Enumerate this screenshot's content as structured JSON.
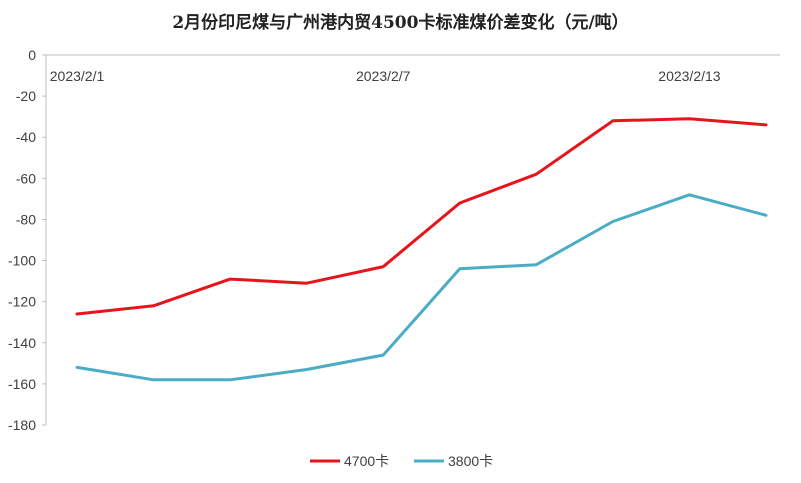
{
  "chart_data": {
    "type": "line",
    "title": "2月份印尼煤与广州港内贸4500卡标准煤价差变化（元/吨）",
    "xlabel": "",
    "ylabel": "",
    "ylim": [
      -180,
      0
    ],
    "y_ticks": [
      0,
      -20,
      -40,
      -60,
      -80,
      -100,
      -120,
      -140,
      -160,
      -180
    ],
    "x_tick_labels": [
      "2023/2/1",
      "2023/2/7",
      "2023/2/13"
    ],
    "x": [
      "2023/2/1",
      "2023/2/2",
      "2023/2/3",
      "2023/2/6",
      "2023/2/7",
      "2023/2/8",
      "2023/2/9",
      "2023/2/10",
      "2023/2/13",
      "2023/2/14"
    ],
    "series": [
      {
        "name": "4700卡",
        "color": "#e8141b",
        "values": [
          -126,
          -122,
          -109,
          -111,
          -103,
          -72,
          -58,
          -32,
          -31,
          -34
        ]
      },
      {
        "name": "3800卡",
        "color": "#4bacc6",
        "values": [
          -152,
          -158,
          -158,
          -153,
          -146,
          -104,
          -102,
          -81,
          -68,
          -78
        ]
      }
    ],
    "grid": false,
    "legend_position": "bottom"
  }
}
